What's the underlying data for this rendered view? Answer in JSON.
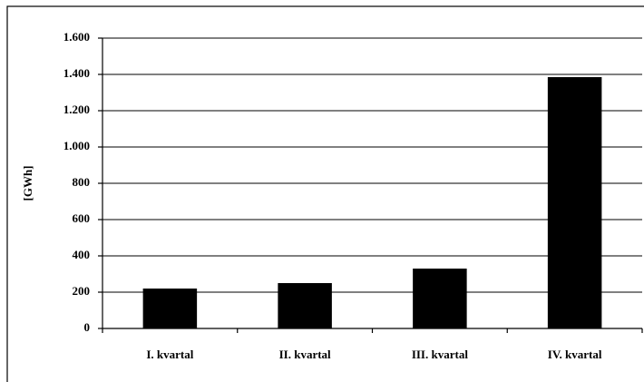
{
  "chart_data": {
    "type": "bar",
    "y_label": "[GWh]",
    "categories": [
      "I. kvartal",
      "II. kvartal",
      "III. kvartal",
      "IV. kvartal"
    ],
    "values": [
      220,
      250,
      330,
      1385
    ],
    "color": "#000000",
    "ylim": [
      0,
      1600
    ],
    "yticks": [
      0,
      200,
      400,
      600,
      800,
      {
        "value": 1000,
        "label": "1.000"
      },
      {
        "value": 1200,
        "label": "1.200"
      },
      {
        "value": 1400,
        "label": "1.400"
      },
      {
        "value": 1600,
        "label": "1.600"
      }
    ],
    "grid": true
  }
}
